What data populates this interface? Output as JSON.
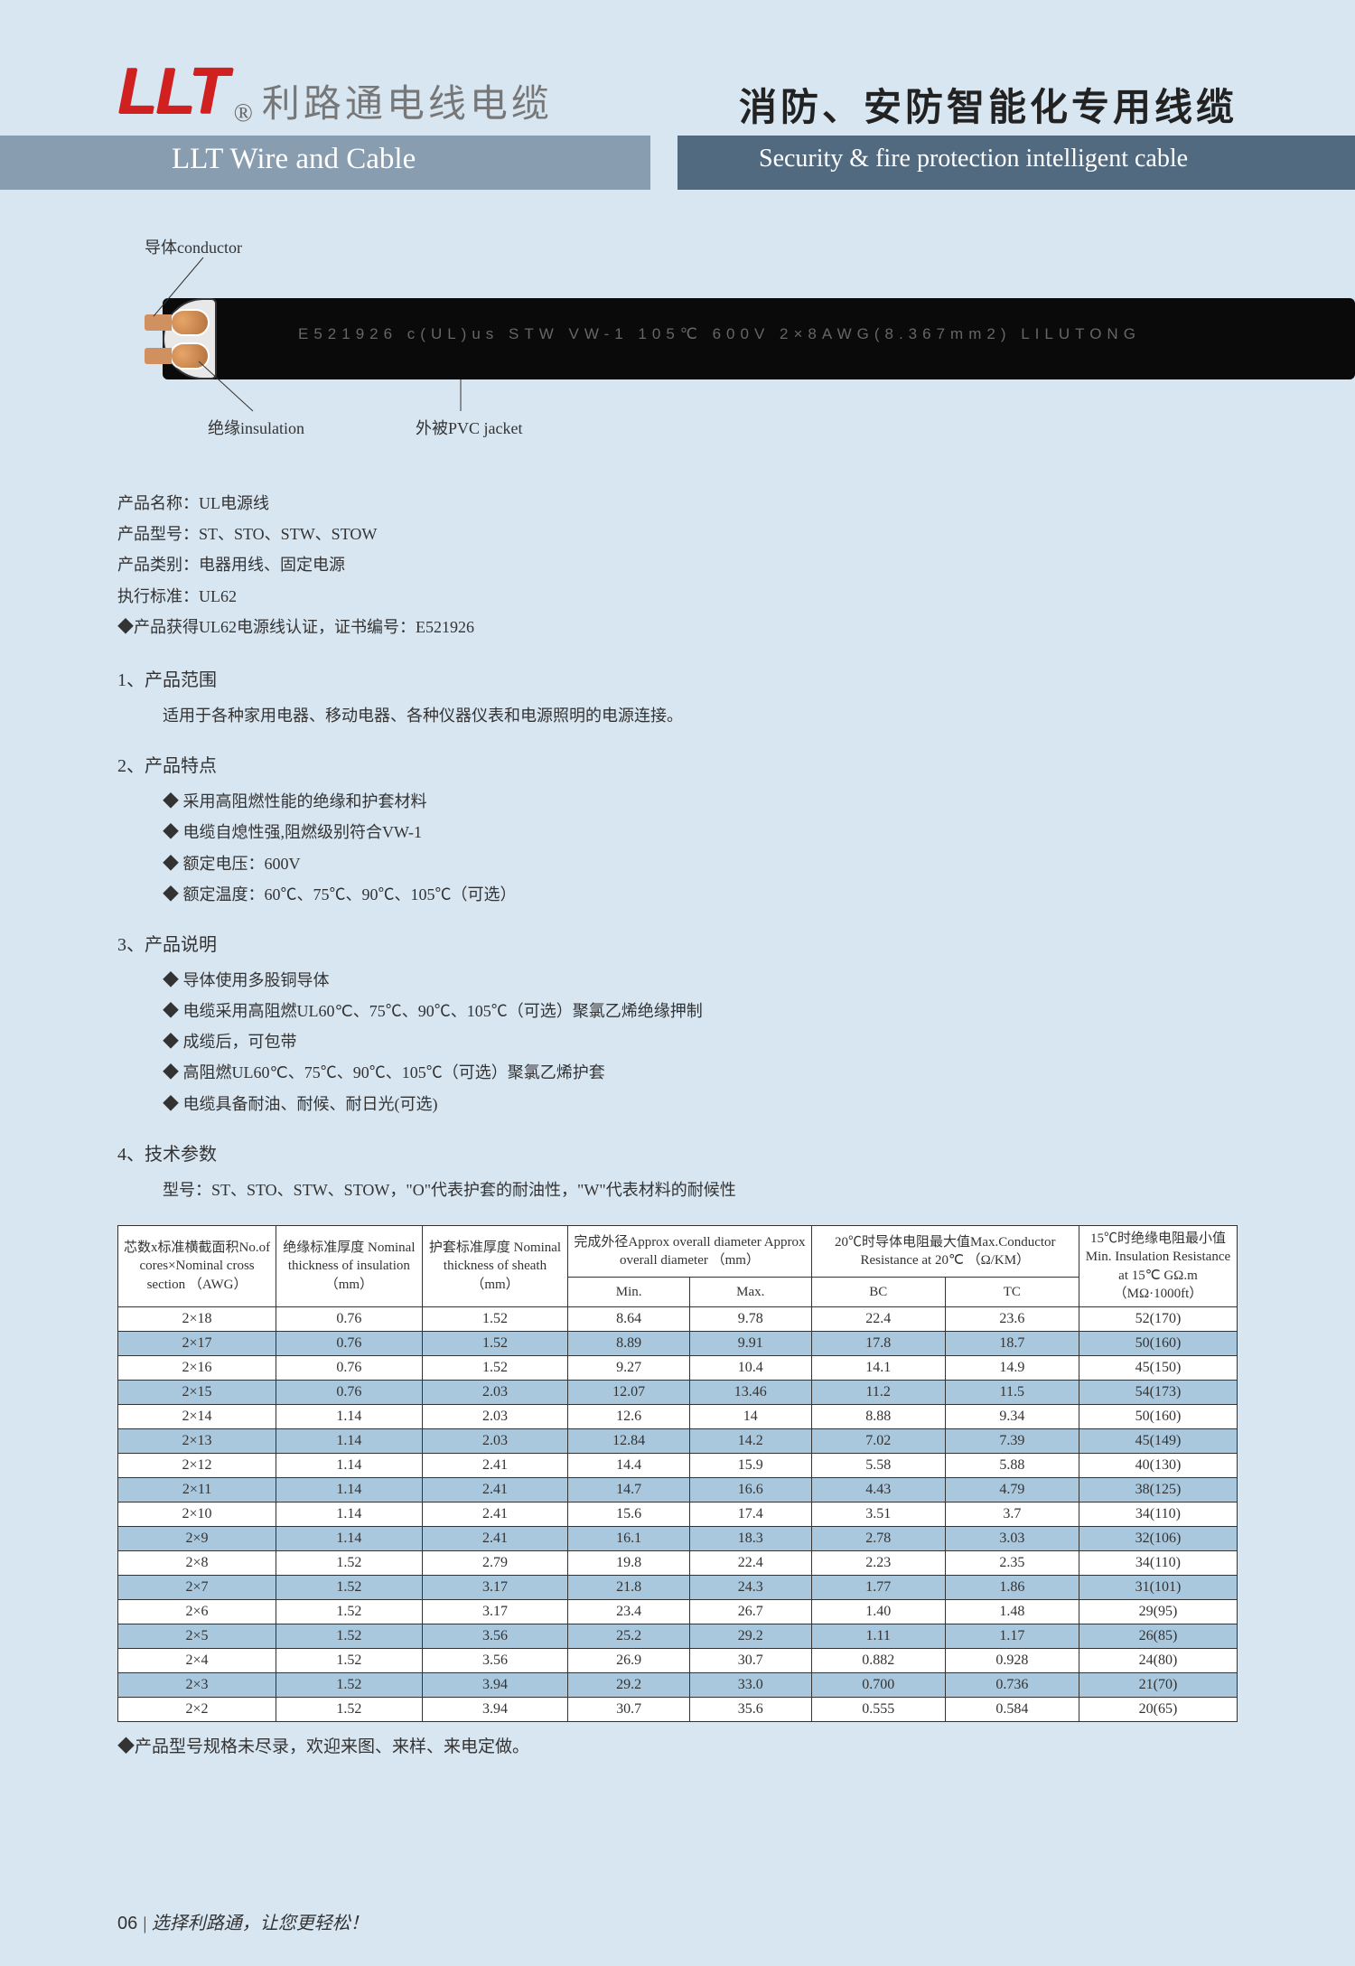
{
  "header": {
    "logo_text": "LLT",
    "logo_cn": "利路通电线电缆",
    "left_subtitle": "LLT Wire and Cable",
    "title_cn": "消防、安防智能化专用线缆",
    "right_subtitle": "Security & fire protection intelligent cable"
  },
  "diagram": {
    "conductor": "导体conductor",
    "insulation": "绝缘insulation",
    "jacket": "外被PVC jacket",
    "cable_marking": "E521926  c(UL)us  STW  VW-1  105℃  600V  2×8AWG(8.367mm2)  LILUTONG"
  },
  "product": {
    "name_label": "产品名称：UL电源线",
    "model_label": "产品型号：ST、STO、STW、STOW",
    "category_label": "产品类别：电器用线、固定电源",
    "standard_label": "执行标准：UL62",
    "cert_label": "◆产品获得UL62电源线认证，证书编号：E521926"
  },
  "sections": {
    "s1_head": "1、产品范围",
    "s1_body": "适用于各种家用电器、移动电器、各种仪器仪表和电源照明的电源连接。",
    "s2_head": "2、产品特点",
    "s2_items": [
      "采用高阻燃性能的绝缘和护套材料",
      "电缆自熄性强,阻燃级别符合VW-1",
      "额定电压：600V",
      "额定温度：60℃、75℃、90℃、105℃（可选）"
    ],
    "s3_head": "3、产品说明",
    "s3_items": [
      "导体使用多股铜导体",
      "电缆采用高阻燃UL60℃、75℃、90℃、105℃（可选）聚氯乙烯绝缘押制",
      "成缆后，可包带",
      "高阻燃UL60℃、75℃、90℃、105℃（可选）聚氯乙烯护套",
      "电缆具备耐油、耐候、耐日光(可选)"
    ],
    "s4_head": "4、技术参数",
    "s4_sub": "型号：ST、STO、STW、STOW，\"O\"代表护套的耐油性，\"W\"代表材料的耐候性"
  },
  "table": {
    "headers": {
      "col1": "芯数x标准横截面积No.of cores×Nominal cross section （AWG）",
      "col2": "绝缘标准厚度 Nominal thickness of insulation （mm）",
      "col3": "护套标准厚度 Nominal thickness of sheath （mm）",
      "col4": "完成外径Approx overall diameter Approx overall diameter （mm）",
      "col4a": "Min.",
      "col4b": "Max.",
      "col5": "20℃时导体电阻最大值Max.Conductor Resistance at 20℃ （Ω/KM）",
      "col5a": "BC",
      "col5b": "TC",
      "col6": "15℃时绝缘电阻最小值Min. Insulation Resistance at 15℃ GΩ.m（MΩ·1000ft）"
    },
    "rows": [
      [
        "2×18",
        "0.76",
        "1.52",
        "8.64",
        "9.78",
        "22.4",
        "23.6",
        "52(170)"
      ],
      [
        "2×17",
        "0.76",
        "1.52",
        "8.89",
        "9.91",
        "17.8",
        "18.7",
        "50(160)"
      ],
      [
        "2×16",
        "0.76",
        "1.52",
        "9.27",
        "10.4",
        "14.1",
        "14.9",
        "45(150)"
      ],
      [
        "2×15",
        "0.76",
        "2.03",
        "12.07",
        "13.46",
        "11.2",
        "11.5",
        "54(173)"
      ],
      [
        "2×14",
        "1.14",
        "2.03",
        "12.6",
        "14",
        "8.88",
        "9.34",
        "50(160)"
      ],
      [
        "2×13",
        "1.14",
        "2.03",
        "12.84",
        "14.2",
        "7.02",
        "7.39",
        "45(149)"
      ],
      [
        "2×12",
        "1.14",
        "2.41",
        "14.4",
        "15.9",
        "5.58",
        "5.88",
        "40(130)"
      ],
      [
        "2×11",
        "1.14",
        "2.41",
        "14.7",
        "16.6",
        "4.43",
        "4.79",
        "38(125)"
      ],
      [
        "2×10",
        "1.14",
        "2.41",
        "15.6",
        "17.4",
        "3.51",
        "3.7",
        "34(110)"
      ],
      [
        "2×9",
        "1.14",
        "2.41",
        "16.1",
        "18.3",
        "2.78",
        "3.03",
        "32(106)"
      ],
      [
        "2×8",
        "1.52",
        "2.79",
        "19.8",
        "22.4",
        "2.23",
        "2.35",
        "34(110)"
      ],
      [
        "2×7",
        "1.52",
        "3.17",
        "21.8",
        "24.3",
        "1.77",
        "1.86",
        "31(101)"
      ],
      [
        "2×6",
        "1.52",
        "3.17",
        "23.4",
        "26.7",
        "1.40",
        "1.48",
        "29(95)"
      ],
      [
        "2×5",
        "1.52",
        "3.56",
        "25.2",
        "29.2",
        "1.11",
        "1.17",
        "26(85)"
      ],
      [
        "2×4",
        "1.52",
        "3.56",
        "26.9",
        "30.7",
        "0.882",
        "0.928",
        "24(80)"
      ],
      [
        "2×3",
        "1.52",
        "3.94",
        "29.2",
        "33.0",
        "0.700",
        "0.736",
        "21(70)"
      ],
      [
        "2×2",
        "1.52",
        "3.94",
        "30.7",
        "35.6",
        "0.555",
        "0.584",
        "20(65)"
      ]
    ]
  },
  "note": "◆产品型号规格未尽录，欢迎来图、来样、来电定做。",
  "footer": {
    "page": "06",
    "slogan": "选择利路通，让您更轻松！"
  }
}
